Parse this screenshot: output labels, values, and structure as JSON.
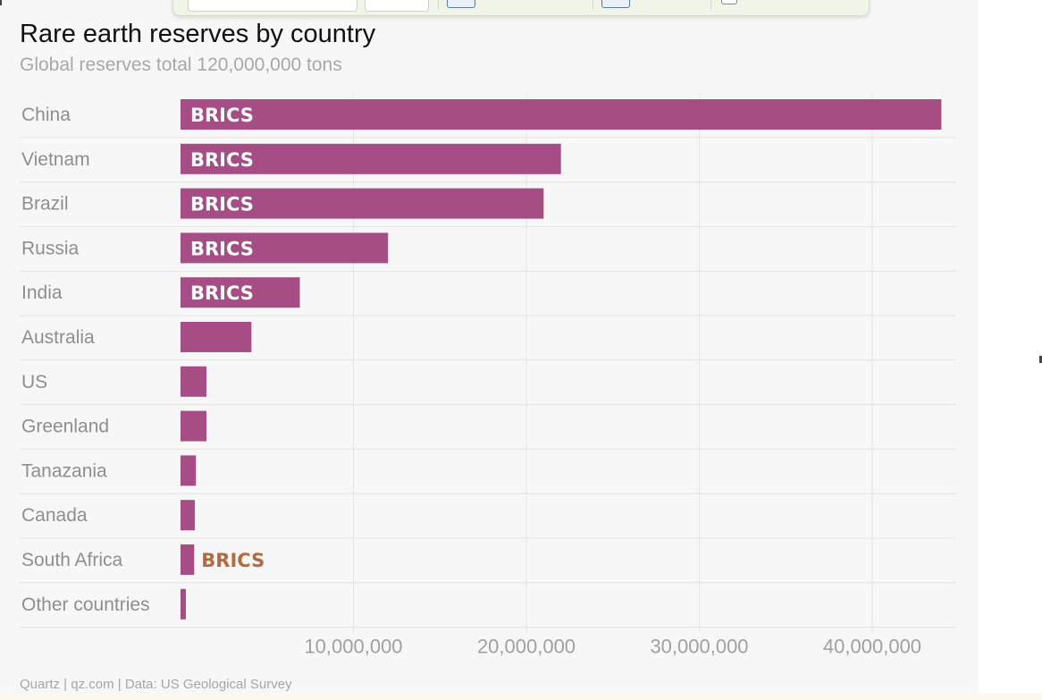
{
  "title": "Rare earth reserves by country",
  "subtitle": "Global reserves total 120,000,000 tons",
  "footer": "Quartz | qz.com | Data: US Geological Survey",
  "colors": {
    "bar": "#a64d85",
    "annotation_inside": "#ffffff",
    "annotation_outside": "#b36a3f",
    "grid": "#e4e4e4"
  },
  "chart_data": {
    "type": "bar",
    "orientation": "horizontal",
    "title": "Rare earth reserves by country",
    "subtitle": "Global reserves total 120,000,000 tons",
    "xlabel": "",
    "ylabel": "",
    "xlim": [
      0,
      44000000
    ],
    "ticks": [
      10000000,
      20000000,
      30000000,
      40000000
    ],
    "tick_labels": [
      "10,000,000",
      "20,000,000",
      "30,000,000",
      "40,000,000"
    ],
    "grid": true,
    "categories": [
      "China",
      "Vietnam",
      "Brazil",
      "Russia",
      "India",
      "Australia",
      "US",
      "Greenland",
      "Tanazania",
      "Canada",
      "South Africa",
      "Other countries"
    ],
    "values": [
      44000000,
      22000000,
      21000000,
      12000000,
      6900000,
      4100000,
      1500000,
      1500000,
      890000,
      830000,
      790000,
      310000
    ],
    "annotations": [
      {
        "category": "China",
        "text": "BRICS",
        "position": "inside"
      },
      {
        "category": "Vietnam",
        "text": "BRICS",
        "position": "inside"
      },
      {
        "category": "Brazil",
        "text": "BRICS",
        "position": "inside"
      },
      {
        "category": "Russia",
        "text": "BRICS",
        "position": "inside"
      },
      {
        "category": "India",
        "text": "BRICS",
        "position": "inside"
      },
      {
        "category": "South Africa",
        "text": "BRICS",
        "position": "outside"
      }
    ]
  }
}
